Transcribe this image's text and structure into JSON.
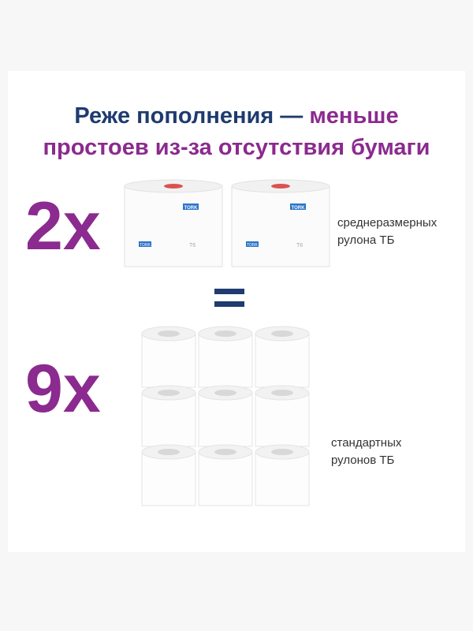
{
  "headline": {
    "line1_navy": "Реже пополнения — ",
    "line1_purple": "меньше",
    "line2": "простоев из-за отсутствия бумаги"
  },
  "mid_rolls": {
    "multiplier": "2x",
    "label_lines": [
      "среднеразмерных",
      "рулона ТБ"
    ],
    "brand": "TORK",
    "marking": "T6"
  },
  "standard_rolls": {
    "multiplier": "9x",
    "label_lines": [
      "стандартных",
      "рулонов ТБ"
    ]
  }
}
